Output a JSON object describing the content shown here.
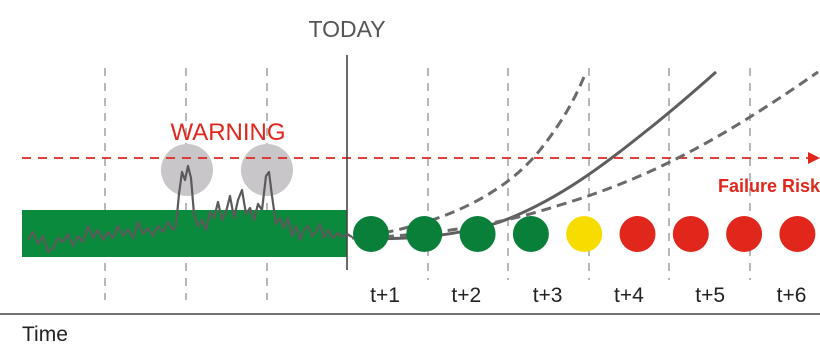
{
  "labels": {
    "today": "TODAY",
    "warning": "WARNING",
    "failure_risk": "Failure Risk",
    "time": "Time",
    "ticks": [
      "t+1",
      "t+2",
      "t+3",
      "t+4",
      "t+5",
      "t+6"
    ]
  },
  "indicator_states": [
    "ok",
    "ok",
    "ok",
    "ok",
    "caution",
    "alert",
    "alert",
    "alert",
    "alert"
  ],
  "colors": {
    "normal_band": "#0a8a3c",
    "ok": "#0a7f3a",
    "caution": "#f7dc00",
    "alert": "#e1261c",
    "warning_text": "#e1261c",
    "threshold_line": "#e1261c",
    "trend_line": "#5a5a5a",
    "grid": "#9a9a9a",
    "highlight_circle": "#c9c6c9",
    "today_text": "#555555"
  },
  "icons": {
    "threshold_arrow": "arrow-right-icon"
  }
}
